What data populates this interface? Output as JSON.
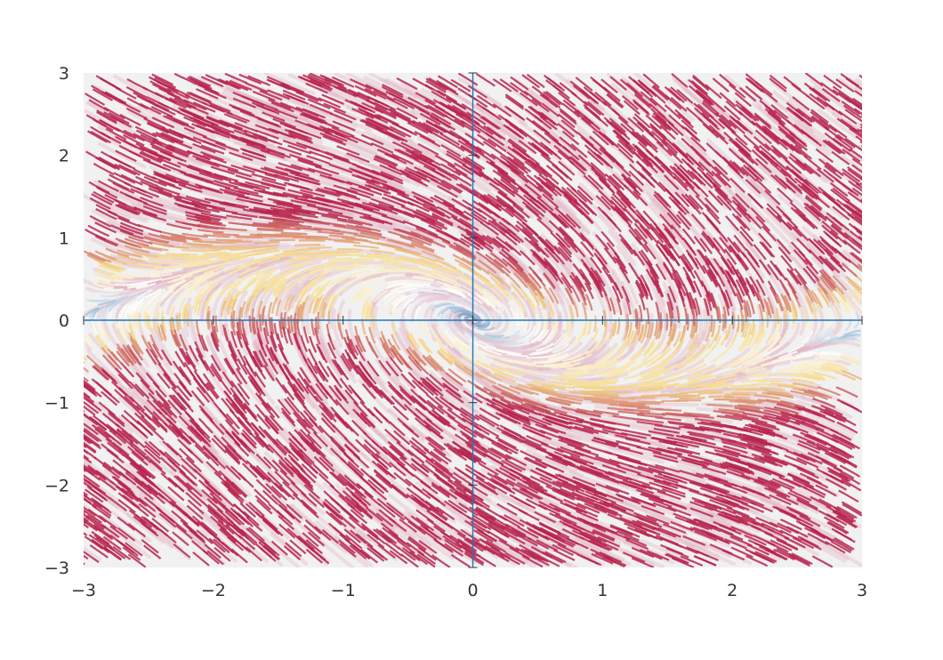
{
  "chart_data": {
    "type": "vector-field",
    "title": "",
    "xlabel": "",
    "ylabel": "",
    "xlim": [
      -3,
      3
    ],
    "ylim": [
      -3,
      3
    ],
    "x_ticks": [
      -3,
      -2,
      -1,
      0,
      1,
      2,
      3
    ],
    "y_ticks": [
      -3,
      -2,
      -1,
      0,
      1,
      2,
      3
    ],
    "x_tick_labels": [
      "−3",
      "−2",
      "−1",
      "0",
      "1",
      "2",
      "3"
    ],
    "y_tick_labels": [
      "−3",
      "−2",
      "−1",
      "0",
      "1",
      "2",
      "3"
    ],
    "field": {
      "dx": "y",
      "dy": "-sin(x) - y",
      "description_visible": false
    },
    "grid": false,
    "axes_through_origin": true,
    "colors": {
      "streak": "#b8264f",
      "background_band": "#e6e6e6",
      "axis_line": "#1f77b4",
      "text": "#333333",
      "low_speed_center": "#4f8fc0",
      "mid_speed": "#f6dc8c",
      "high_speed": "#b8264f"
    }
  }
}
